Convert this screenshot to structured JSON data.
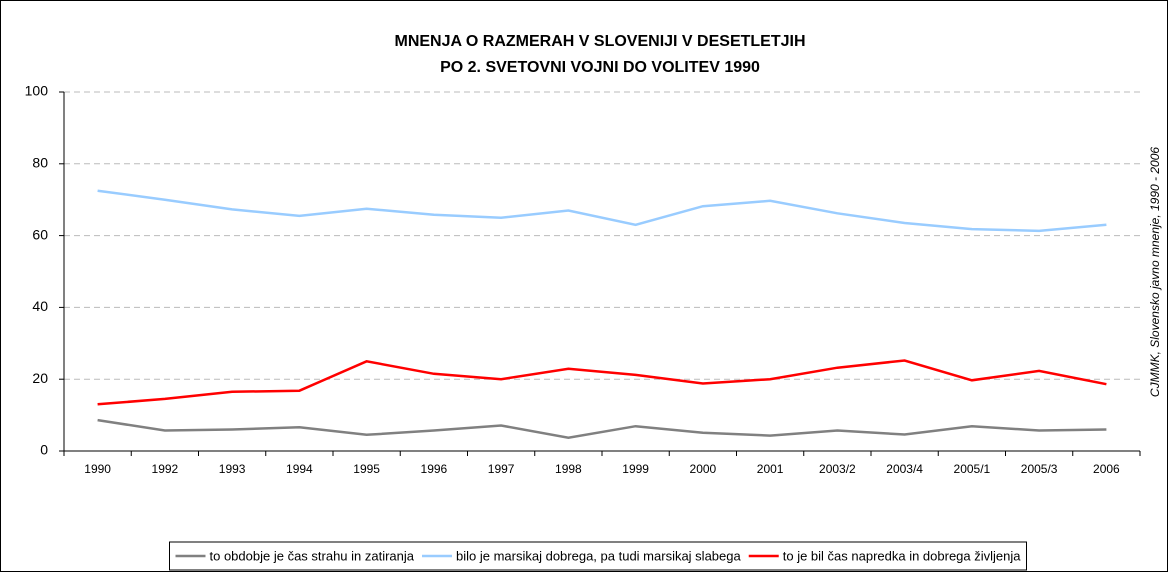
{
  "chart_data": {
    "type": "line",
    "title": "MNENJA O RAZMERAH V SLOVENIJI V DESETLETJIH",
    "subtitle": "PO 2. SVETOVNI VOJNI DO VOLITEV 1990",
    "annotation": "CJMMK, Slovensko javno mnenje, 1990 - 2006",
    "categories": [
      "1990",
      "1992",
      "1993",
      "1994",
      "1995",
      "1996",
      "1997",
      "1998",
      "1999",
      "2000",
      "2001",
      "2003/2",
      "2003/4",
      "2005/1",
      "2005/3",
      "2006"
    ],
    "series": [
      {
        "name": "to obdobje je čas strahu in zatiranja",
        "color": "#808080",
        "values": [
          8.6,
          5.7,
          6,
          6.6,
          4.5,
          5.7,
          7.1,
          3.7,
          6.9,
          5.1,
          4.3,
          5.7,
          4.6,
          6.9,
          5.7,
          6
        ]
      },
      {
        "name": "bilo je marsikaj dobrega, pa tudi marsikaj slabega",
        "color": "#99ccff",
        "values": [
          72.5,
          70,
          67.3,
          65.5,
          67.5,
          65.8,
          65,
          67,
          63,
          68.2,
          69.7,
          66.2,
          63.5,
          61.8,
          61.3,
          63
        ]
      },
      {
        "name": "to je bil čas napredka in dobrega življenja",
        "color": "#ff0000",
        "values": [
          13,
          14.5,
          16.5,
          16.8,
          25,
          21.5,
          20,
          22.9,
          21.2,
          18.8,
          20,
          23.2,
          25.2,
          19.7,
          22.3,
          18.6
        ]
      }
    ],
    "ylim": [
      0,
      100
    ],
    "yticks": [
      0,
      20,
      40,
      60,
      80,
      100
    ],
    "grid": true,
    "legend": "bottom"
  }
}
